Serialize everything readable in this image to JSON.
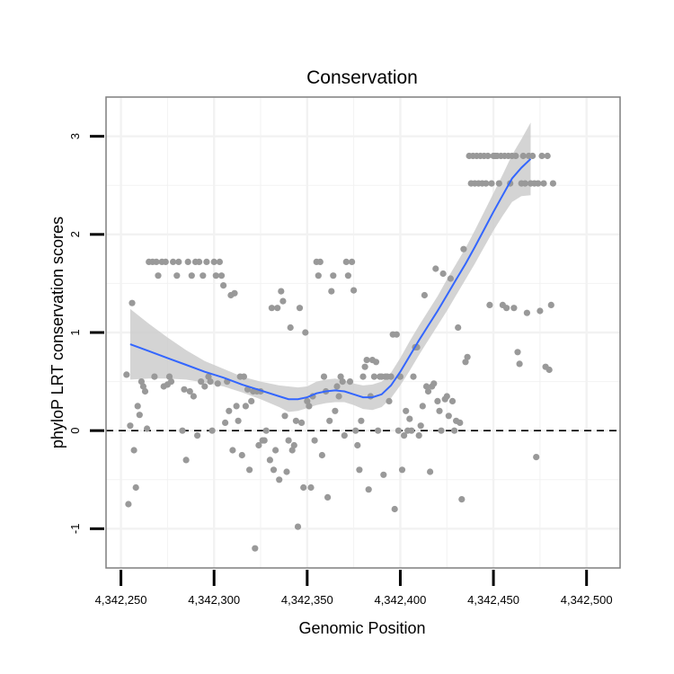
{
  "chart_data": {
    "type": "scatter",
    "title": "Conservation",
    "xlabel": "Genomic Position",
    "ylabel": "phyloP LRT conservation scores",
    "xlim": [
      4342242,
      4342518
    ],
    "ylim": [
      -1.4,
      3.4
    ],
    "x_ticks": [
      4342250,
      4342300,
      4342350,
      4342400,
      4342450,
      4342500
    ],
    "x_tick_labels": [
      "4,342,250",
      "4,342,300",
      "4,342,350",
      "4,342,400",
      "4,342,450",
      "4,342,500"
    ],
    "y_ticks": [
      -1,
      0,
      1,
      2,
      3
    ],
    "y_tick_labels": [
      "-1",
      "0",
      "1",
      "2",
      "3"
    ],
    "reference_line": {
      "y": 0,
      "style": "dashed"
    },
    "colors": {
      "points": "#999999",
      "smooth": "#3366ff",
      "band": "#cccccc",
      "frame": "#7f7f7f",
      "grid": "#f2f2f2"
    },
    "series": [
      {
        "name": "points",
        "points": [
          [
            4342253,
            0.57
          ],
          [
            4342254,
            -0.75
          ],
          [
            4342255,
            0.05
          ],
          [
            4342256,
            1.3
          ],
          [
            4342257,
            -0.2
          ],
          [
            4342258,
            -0.58
          ],
          [
            4342259,
            0.25
          ],
          [
            4342260,
            0.16
          ],
          [
            4342261,
            0.5
          ],
          [
            4342262,
            0.45
          ],
          [
            4342263,
            0.4
          ],
          [
            4342264,
            0.02
          ],
          [
            4342265,
            1.72
          ],
          [
            4342267,
            1.72
          ],
          [
            4342268,
            0.55
          ],
          [
            4342269,
            1.72
          ],
          [
            4342270,
            1.58
          ],
          [
            4342272,
            1.72
          ],
          [
            4342273,
            0.45
          ],
          [
            4342274,
            1.72
          ],
          [
            4342275,
            0.47
          ],
          [
            4342276,
            0.55
          ],
          [
            4342277,
            0.5
          ],
          [
            4342278,
            1.72
          ],
          [
            4342280,
            1.58
          ],
          [
            4342281,
            1.72
          ],
          [
            4342283,
            0.0
          ],
          [
            4342284,
            0.42
          ],
          [
            4342285,
            -0.3
          ],
          [
            4342286,
            1.72
          ],
          [
            4342287,
            0.4
          ],
          [
            4342288,
            1.58
          ],
          [
            4342289,
            0.35
          ],
          [
            4342290,
            1.72
          ],
          [
            4342291,
            -0.05
          ],
          [
            4342292,
            1.72
          ],
          [
            4342293,
            0.5
          ],
          [
            4342294,
            1.58
          ],
          [
            4342295,
            0.45
          ],
          [
            4342296,
            1.72
          ],
          [
            4342297,
            0.55
          ],
          [
            4342298,
            0.5
          ],
          [
            4342299,
            0.0
          ],
          [
            4342300,
            1.72
          ],
          [
            4342301,
            1.58
          ],
          [
            4342302,
            0.48
          ],
          [
            4342303,
            1.72
          ],
          [
            4342304,
            1.58
          ],
          [
            4342305,
            1.48
          ],
          [
            4342306,
            0.08
          ],
          [
            4342307,
            0.5
          ],
          [
            4342308,
            0.2
          ],
          [
            4342309,
            1.38
          ],
          [
            4342310,
            -0.2
          ],
          [
            4342311,
            1.4
          ],
          [
            4342312,
            0.25
          ],
          [
            4342313,
            0.1
          ],
          [
            4342314,
            0.55
          ],
          [
            4342315,
            -0.25
          ],
          [
            4342316,
            0.55
          ],
          [
            4342317,
            0.25
          ],
          [
            4342318,
            0.42
          ],
          [
            4342319,
            -0.4
          ],
          [
            4342320,
            0.3
          ],
          [
            4342321,
            0.4
          ],
          [
            4342322,
            -1.2
          ],
          [
            4342323,
            0.4
          ],
          [
            4342324,
            -0.15
          ],
          [
            4342325,
            0.4
          ],
          [
            4342326,
            -0.1
          ],
          [
            4342327,
            -0.1
          ],
          [
            4342328,
            0.0
          ],
          [
            4342330,
            -0.3
          ],
          [
            4342331,
            1.25
          ],
          [
            4342332,
            -0.4
          ],
          [
            4342333,
            -0.2
          ],
          [
            4342334,
            1.25
          ],
          [
            4342335,
            -0.5
          ],
          [
            4342336,
            1.42
          ],
          [
            4342337,
            1.32
          ],
          [
            4342338,
            0.15
          ],
          [
            4342339,
            -0.42
          ],
          [
            4342340,
            -0.1
          ],
          [
            4342341,
            1.05
          ],
          [
            4342342,
            -0.2
          ],
          [
            4342343,
            -0.15
          ],
          [
            4342344,
            0.1
          ],
          [
            4342345,
            -0.98
          ],
          [
            4342346,
            1.25
          ],
          [
            4342347,
            0.08
          ],
          [
            4342348,
            -0.58
          ],
          [
            4342349,
            1.0
          ],
          [
            4342350,
            0.3
          ],
          [
            4342351,
            0.25
          ],
          [
            4342352,
            -0.58
          ],
          [
            4342353,
            0.35
          ],
          [
            4342354,
            -0.1
          ],
          [
            4342355,
            1.72
          ],
          [
            4342356,
            1.58
          ],
          [
            4342357,
            1.72
          ],
          [
            4342358,
            -0.25
          ],
          [
            4342359,
            0.55
          ],
          [
            4342360,
            0.4
          ],
          [
            4342361,
            -0.68
          ],
          [
            4342362,
            0.1
          ],
          [
            4342363,
            1.42
          ],
          [
            4342364,
            1.58
          ],
          [
            4342365,
            0.2
          ],
          [
            4342366,
            0.45
          ],
          [
            4342367,
            0.35
          ],
          [
            4342368,
            0.55
          ],
          [
            4342369,
            0.5
          ],
          [
            4342370,
            -0.05
          ],
          [
            4342371,
            1.72
          ],
          [
            4342372,
            1.58
          ],
          [
            4342373,
            0.5
          ],
          [
            4342374,
            1.72
          ],
          [
            4342375,
            1.43
          ],
          [
            4342376,
            0.0
          ],
          [
            4342377,
            -0.15
          ],
          [
            4342378,
            -0.4
          ],
          [
            4342379,
            0.1
          ],
          [
            4342380,
            0.55
          ],
          [
            4342381,
            0.65
          ],
          [
            4342382,
            0.72
          ],
          [
            4342383,
            -0.6
          ],
          [
            4342384,
            0.35
          ],
          [
            4342385,
            0.72
          ],
          [
            4342386,
            0.55
          ],
          [
            4342387,
            0.7
          ],
          [
            4342388,
            0.0
          ],
          [
            4342389,
            0.55
          ],
          [
            4342390,
            0.55
          ],
          [
            4342391,
            -0.45
          ],
          [
            4342392,
            0.55
          ],
          [
            4342393,
            0.55
          ],
          [
            4342394,
            0.3
          ],
          [
            4342395,
            0.55
          ],
          [
            4342396,
            0.98
          ],
          [
            4342397,
            -0.8
          ],
          [
            4342398,
            0.98
          ],
          [
            4342399,
            0.0
          ],
          [
            4342400,
            0.55
          ],
          [
            4342401,
            -0.4
          ],
          [
            4342402,
            -0.05
          ],
          [
            4342403,
            0.2
          ],
          [
            4342404,
            0.0
          ],
          [
            4342405,
            0.12
          ],
          [
            4342406,
            0.0
          ],
          [
            4342407,
            0.55
          ],
          [
            4342408,
            0.85
          ],
          [
            4342409,
            0.85
          ],
          [
            4342410,
            -0.05
          ],
          [
            4342411,
            0.05
          ],
          [
            4342412,
            0.25
          ],
          [
            4342413,
            1.38
          ],
          [
            4342414,
            0.45
          ],
          [
            4342415,
            0.4
          ],
          [
            4342416,
            -0.42
          ],
          [
            4342417,
            0.45
          ],
          [
            4342418,
            0.48
          ],
          [
            4342419,
            1.65
          ],
          [
            4342420,
            0.3
          ],
          [
            4342421,
            0.2
          ],
          [
            4342422,
            0.0
          ],
          [
            4342423,
            1.6
          ],
          [
            4342424,
            0.32
          ],
          [
            4342425,
            0.35
          ],
          [
            4342426,
            0.15
          ],
          [
            4342427,
            1.55
          ],
          [
            4342428,
            0.3
          ],
          [
            4342429,
            0.0
          ],
          [
            4342430,
            0.1
          ],
          [
            4342431,
            1.05
          ],
          [
            4342432,
            0.08
          ],
          [
            4342433,
            -0.7
          ],
          [
            4342434,
            1.85
          ],
          [
            4342435,
            0.7
          ],
          [
            4342436,
            0.75
          ],
          [
            4342437,
            2.8
          ],
          [
            4342438,
            2.52
          ],
          [
            4342439,
            2.8
          ],
          [
            4342440,
            2.52
          ],
          [
            4342441,
            2.8
          ],
          [
            4342442,
            2.52
          ],
          [
            4342443,
            2.8
          ],
          [
            4342444,
            2.52
          ],
          [
            4342445,
            2.8
          ],
          [
            4342446,
            2.52
          ],
          [
            4342447,
            2.8
          ],
          [
            4342448,
            1.28
          ],
          [
            4342449,
            2.52
          ],
          [
            4342450,
            2.8
          ],
          [
            4342451,
            2.8
          ],
          [
            4342452,
            2.8
          ],
          [
            4342453,
            2.52
          ],
          [
            4342454,
            2.8
          ],
          [
            4342455,
            1.28
          ],
          [
            4342456,
            2.8
          ],
          [
            4342457,
            1.25
          ],
          [
            4342458,
            2.8
          ],
          [
            4342459,
            2.52
          ],
          [
            4342460,
            2.8
          ],
          [
            4342461,
            1.25
          ],
          [
            4342462,
            2.8
          ],
          [
            4342463,
            0.8
          ],
          [
            4342464,
            0.68
          ],
          [
            4342465,
            2.52
          ],
          [
            4342466,
            2.8
          ],
          [
            4342467,
            2.52
          ],
          [
            4342468,
            1.2
          ],
          [
            4342469,
            2.8
          ],
          [
            4342470,
            2.52
          ],
          [
            4342471,
            2.8
          ],
          [
            4342472,
            2.52
          ],
          [
            4342473,
            -0.27
          ],
          [
            4342474,
            2.52
          ],
          [
            4342475,
            1.22
          ],
          [
            4342476,
            2.8
          ],
          [
            4342477,
            2.52
          ],
          [
            4342478,
            0.65
          ],
          [
            4342479,
            2.8
          ],
          [
            4342480,
            0.62
          ],
          [
            4342481,
            1.28
          ],
          [
            4342482,
            2.52
          ]
        ]
      },
      {
        "name": "loess smooth",
        "points": [
          [
            4342255,
            0.88
          ],
          [
            4342265,
            0.81
          ],
          [
            4342275,
            0.74
          ],
          [
            4342285,
            0.67
          ],
          [
            4342295,
            0.6
          ],
          [
            4342305,
            0.54
          ],
          [
            4342315,
            0.47
          ],
          [
            4342325,
            0.41
          ],
          [
            4342335,
            0.35
          ],
          [
            4342340,
            0.32
          ],
          [
            4342345,
            0.32
          ],
          [
            4342350,
            0.34
          ],
          [
            4342355,
            0.38
          ],
          [
            4342360,
            0.4
          ],
          [
            4342365,
            0.41
          ],
          [
            4342370,
            0.4
          ],
          [
            4342375,
            0.37
          ],
          [
            4342380,
            0.34
          ],
          [
            4342385,
            0.34
          ],
          [
            4342390,
            0.37
          ],
          [
            4342395,
            0.46
          ],
          [
            4342400,
            0.6
          ],
          [
            4342405,
            0.76
          ],
          [
            4342410,
            0.92
          ],
          [
            4342415,
            1.07
          ],
          [
            4342420,
            1.22
          ],
          [
            4342425,
            1.38
          ],
          [
            4342430,
            1.54
          ],
          [
            4342435,
            1.7
          ],
          [
            4342440,
            1.87
          ],
          [
            4342445,
            2.05
          ],
          [
            4342450,
            2.23
          ],
          [
            4342455,
            2.4
          ],
          [
            4342460,
            2.57
          ],
          [
            4342465,
            2.68
          ],
          [
            4342470,
            2.77
          ]
        ],
        "ci_lower": [
          0.52,
          0.53,
          0.53,
          0.52,
          0.49,
          0.45,
          0.39,
          0.32,
          0.24,
          0.19,
          0.2,
          0.23,
          0.26,
          0.28,
          0.29,
          0.29,
          0.26,
          0.22,
          0.21,
          0.24,
          0.33,
          0.46,
          0.61,
          0.77,
          0.92,
          1.07,
          1.22,
          1.38,
          1.54,
          1.7,
          1.87,
          2.04,
          2.19,
          2.33,
          2.39,
          2.4
        ],
        "ci_upper": [
          1.24,
          1.09,
          0.95,
          0.82,
          0.71,
          0.63,
          0.55,
          0.5,
          0.46,
          0.45,
          0.44,
          0.45,
          0.5,
          0.52,
          0.53,
          0.51,
          0.48,
          0.46,
          0.47,
          0.5,
          0.59,
          0.74,
          0.91,
          1.07,
          1.22,
          1.37,
          1.54,
          1.7,
          1.86,
          2.04,
          2.23,
          2.42,
          2.61,
          2.81,
          2.97,
          3.14
        ]
      }
    ]
  }
}
